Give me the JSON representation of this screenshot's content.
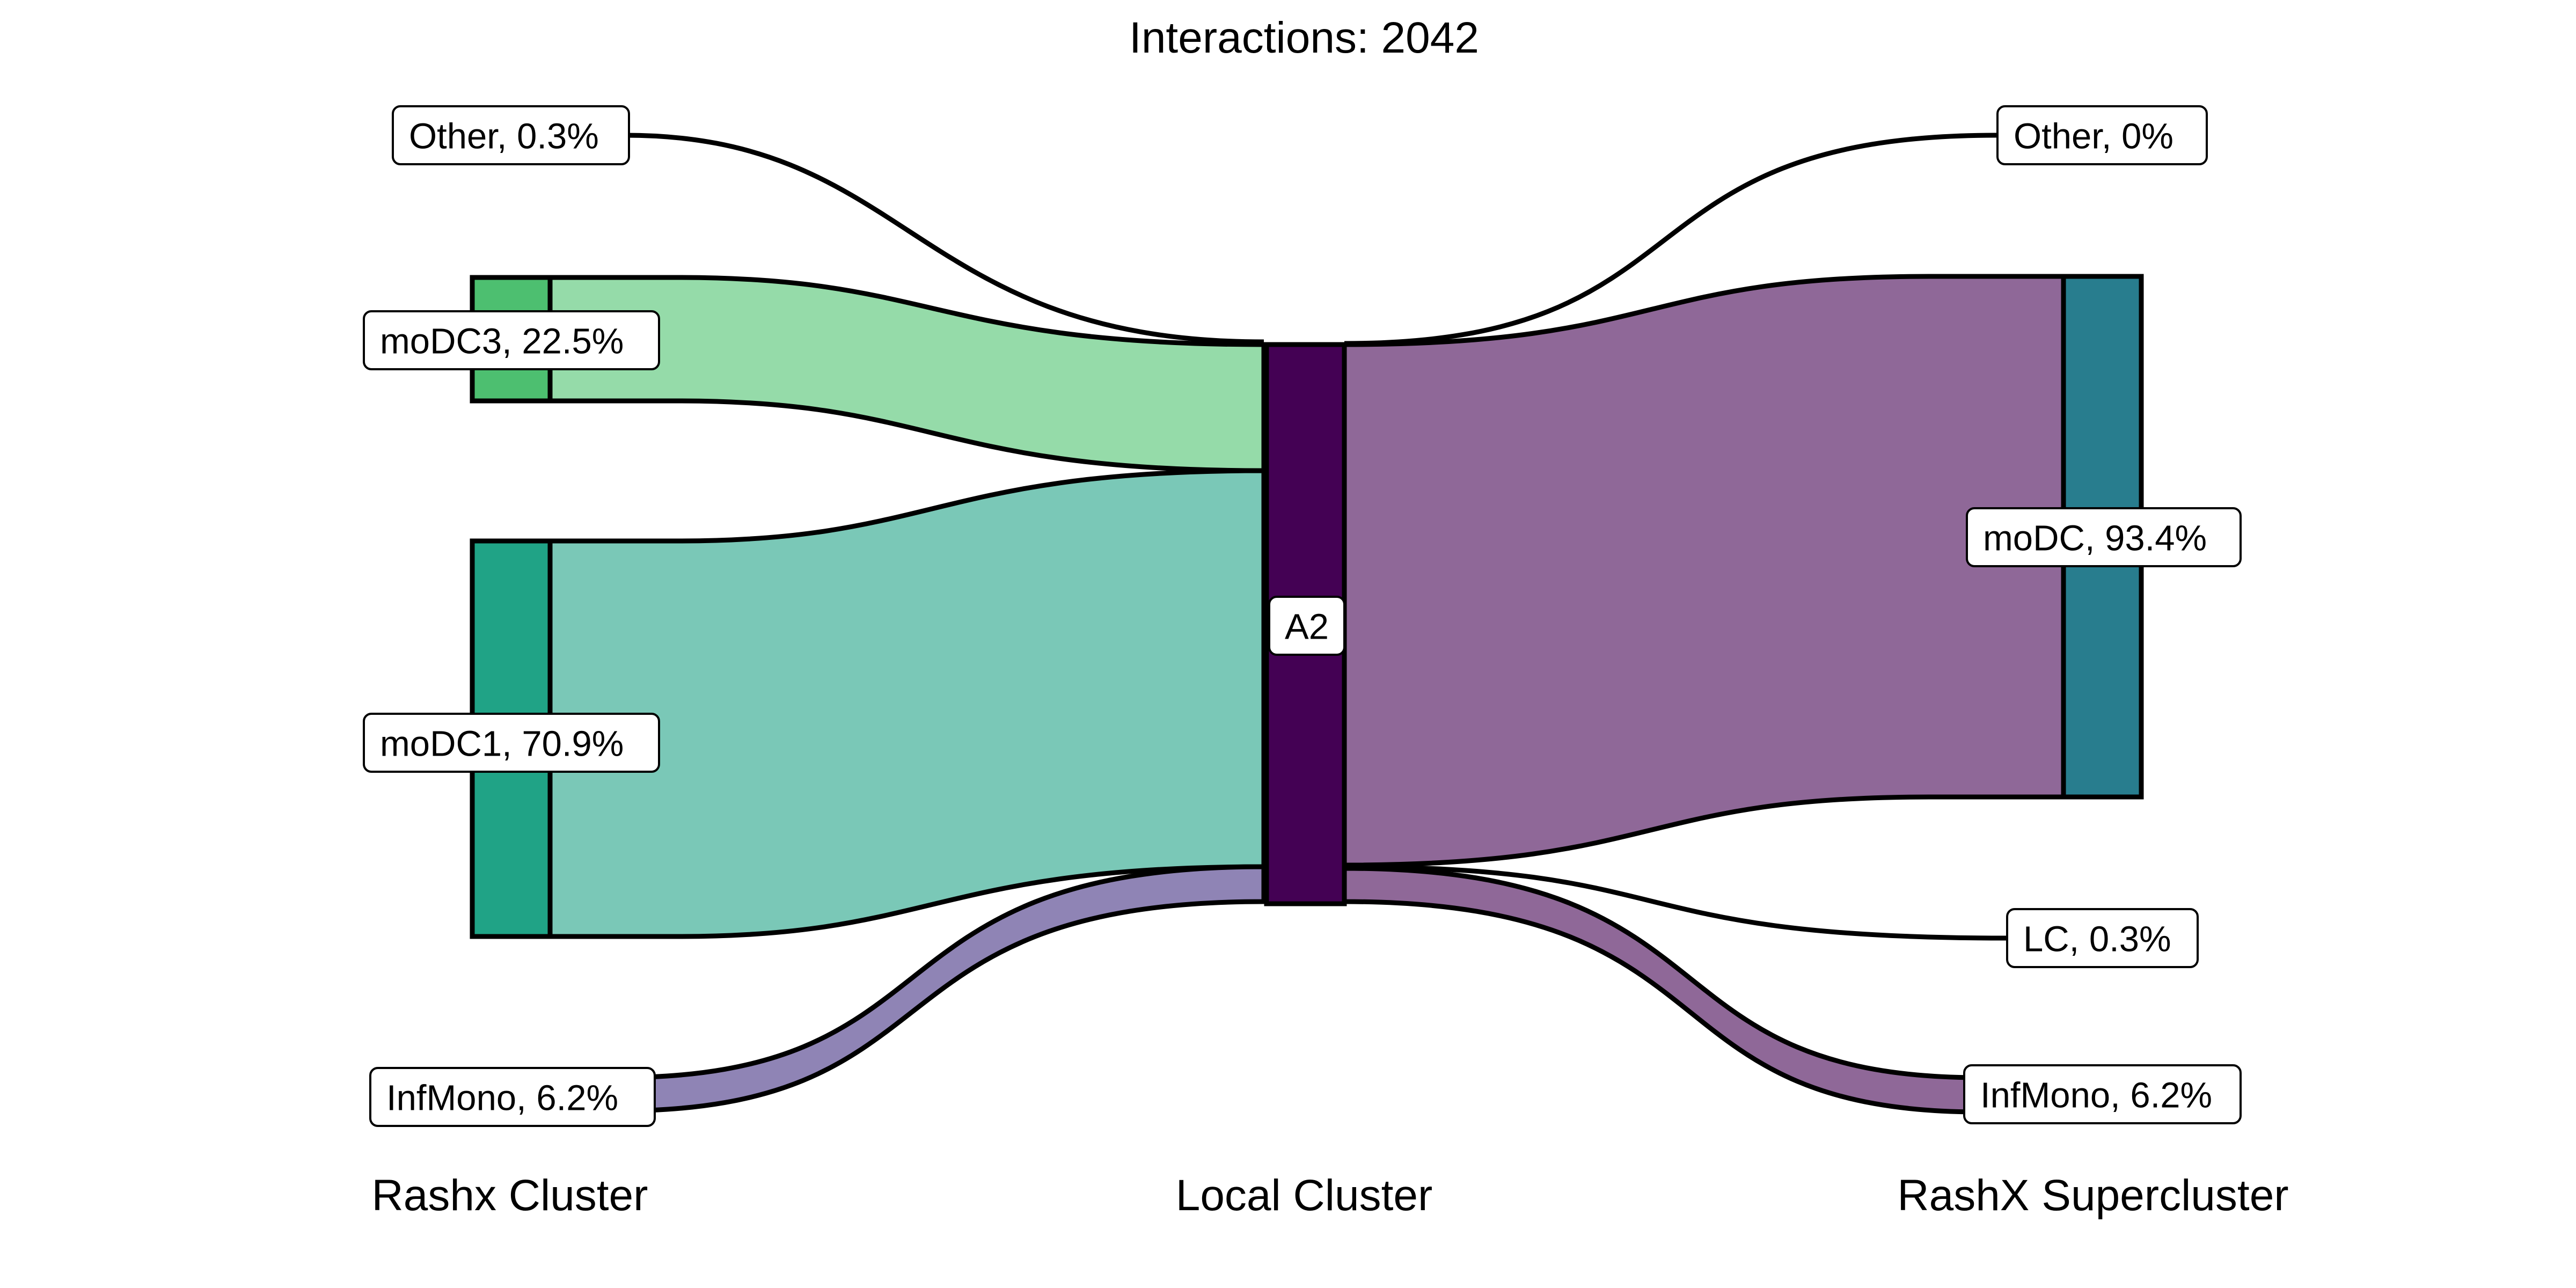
{
  "title": "Interactions: 2042",
  "axis_labels": {
    "left": "Rashx Cluster",
    "middle": "Local Cluster",
    "right": "RashX Supercluster"
  },
  "nodes": {
    "left": [
      {
        "id": "other_l",
        "label": "Other, 0.3%",
        "percent": 0.3,
        "color": "#ffffff"
      },
      {
        "id": "modc3",
        "label": "moDC3, 22.5%",
        "percent": 22.5,
        "color": "#4dbf70"
      },
      {
        "id": "modc1",
        "label": "moDC1, 70.9%",
        "percent": 70.9,
        "color": "#20a386"
      },
      {
        "id": "infmono_l",
        "label": "InfMono, 6.2%",
        "percent": 6.2,
        "color": "#8f84b5"
      }
    ],
    "middle": [
      {
        "id": "a2",
        "label": "A2",
        "percent": 100,
        "color": "#440154"
      }
    ],
    "right": [
      {
        "id": "other_r",
        "label": "Other, 0%",
        "percent": 0,
        "color": "#ffffff"
      },
      {
        "id": "modc",
        "label": "moDC, 93.4%",
        "percent": 93.4,
        "color": "#287d8e"
      },
      {
        "id": "lc",
        "label": "LC, 0.3%",
        "percent": 0.3,
        "color": "#ffffff"
      },
      {
        "id": "infmono_r",
        "label": "InfMono, 6.2%",
        "percent": 6.2,
        "color": "#8f6898"
      }
    ]
  },
  "flows": {
    "in": [
      {
        "from": "other_l",
        "to": "a2",
        "percent": 0.3,
        "color": "#ffffff"
      },
      {
        "from": "modc3",
        "to": "a2",
        "percent": 22.5,
        "color": "#95dba9"
      },
      {
        "from": "modc1",
        "to": "a2",
        "percent": 70.9,
        "color": "#7ac8b7"
      },
      {
        "from": "infmono_l",
        "to": "a2",
        "percent": 6.2,
        "color": "#8f84b5"
      }
    ],
    "out": [
      {
        "from": "a2",
        "to": "other_r",
        "percent": 0,
        "color": "#ffffff"
      },
      {
        "from": "a2",
        "to": "modc",
        "percent": 93.4,
        "color": "#8f6898"
      },
      {
        "from": "a2",
        "to": "lc",
        "percent": 0.3,
        "color": "#ffffff"
      },
      {
        "from": "a2",
        "to": "infmono_r",
        "percent": 6.2,
        "color": "#8f6898"
      }
    ]
  }
}
